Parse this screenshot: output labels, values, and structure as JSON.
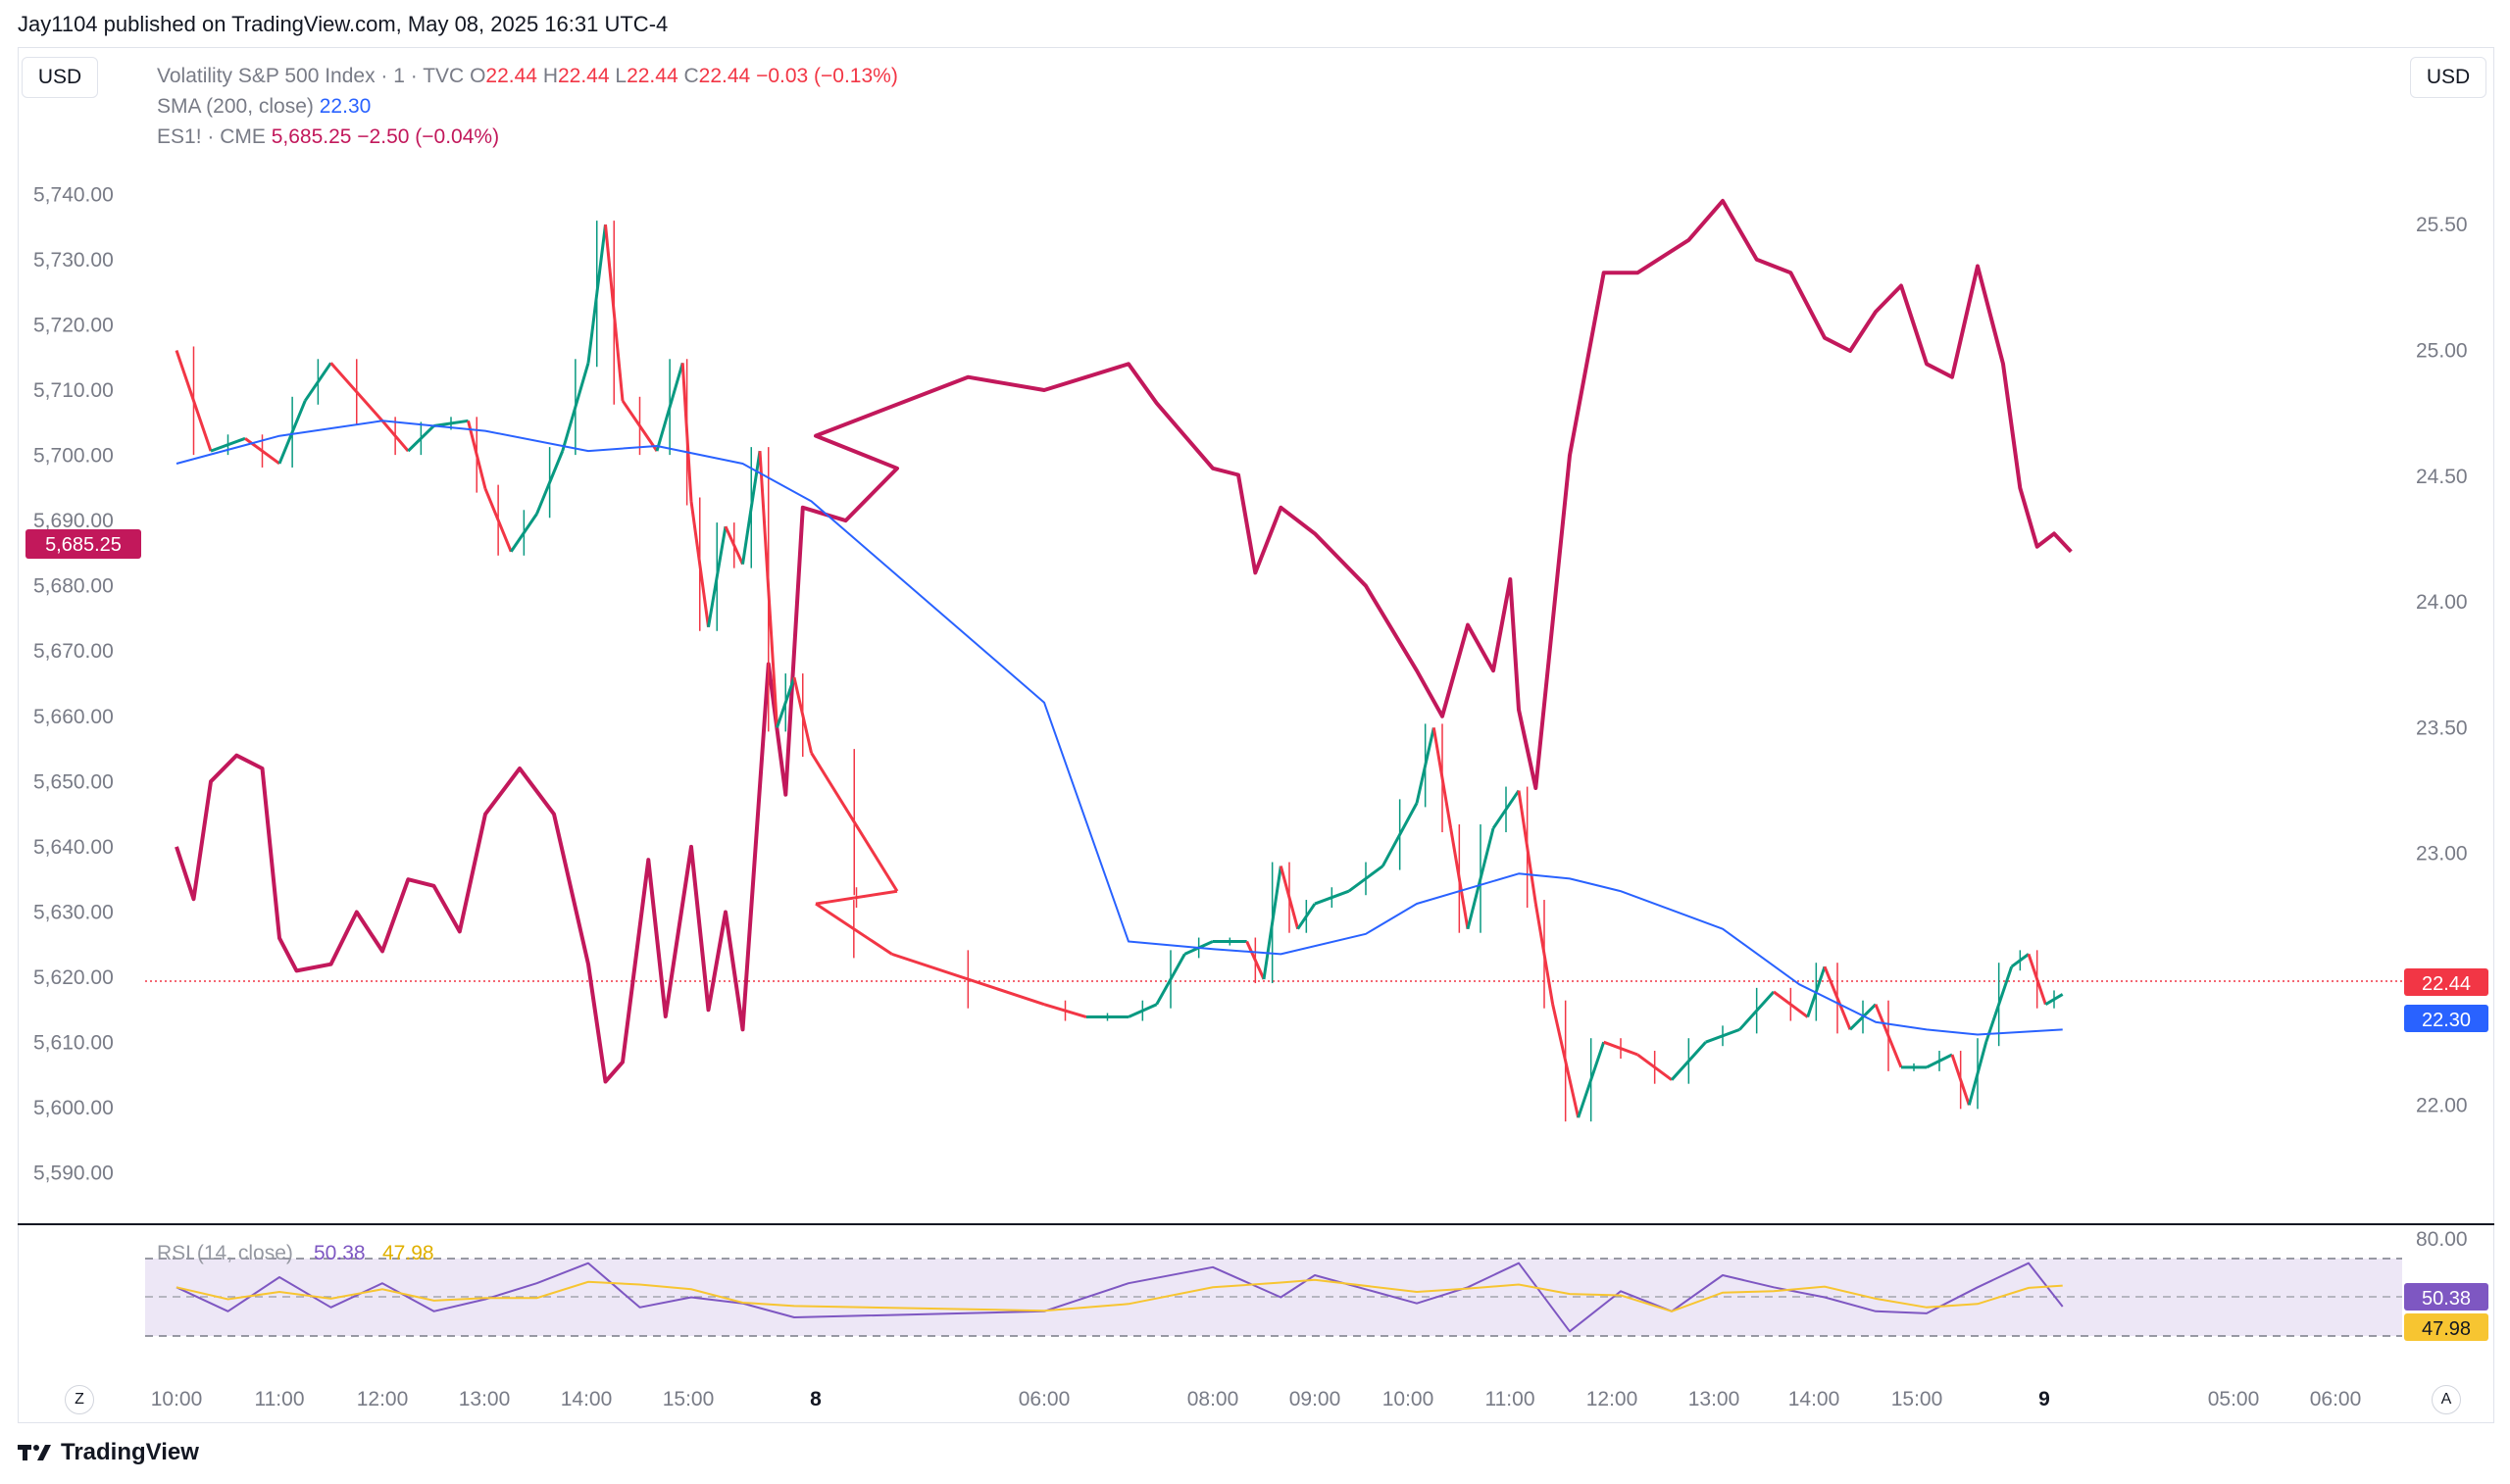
{
  "header": {
    "published": "Jay1104 published on TradingView.com, May 08, 2025 16:31 UTC-4"
  },
  "currency_left": "USD",
  "currency_right": "USD",
  "legend": {
    "vix_name": "Volatility S&P 500 Index · 1 · TVC",
    "o_label": "O",
    "o_value": "22.44",
    "h_label": "H",
    "h_value": "22.44",
    "l_label": "L",
    "l_value": "22.44",
    "c_label": "C",
    "c_value": "22.44",
    "change": "−0.03 (−0.13%)",
    "sma_label": "SMA (200, close)",
    "sma_value": "22.30",
    "es_label": "ES1! · CME",
    "es_value": "5,685.25",
    "es_change": "−2.50 (−0.04%)"
  },
  "colors": {
    "vix_up": "#089981",
    "vix_down": "#f23645",
    "sma": "#2962ff",
    "es": "#c2185b",
    "rsi": "#7e57c2",
    "rsi_ma": "#f7c531",
    "rsi_band": "#ede7f6"
  },
  "badges": {
    "es_last": "5,685.25",
    "vix_last": "22.44",
    "sma_last": "22.30",
    "rsi_value": "50.38",
    "rsi_ma_value": "47.98"
  },
  "rsi_legend": {
    "label": "RSI (14, close)",
    "value": "50.38",
    "ma": "47.98"
  },
  "corner": {
    "left": "Z",
    "right": "A"
  },
  "footer": {
    "brand": "TradingView"
  },
  "chart_data": {
    "type": "line",
    "title": "",
    "x": [
      "10:00",
      "11:00",
      "12:00",
      "13:00",
      "14:00",
      "15:00",
      "8",
      "06:00",
      "08:00",
      "09:00",
      "10:00",
      "11:00",
      "12:00",
      "13:00",
      "14:00",
      "15:00",
      "9",
      "05:00",
      "06:00"
    ],
    "left_axis": {
      "ylim": [
        5585,
        5745
      ],
      "ticks": [
        "5,740.00",
        "5,730.00",
        "5,720.00",
        "5,710.00",
        "5,700.00",
        "5,690.00",
        "5,680.00",
        "5,670.00",
        "5,660.00",
        "5,650.00",
        "5,640.00",
        "5,630.00",
        "5,620.00",
        "5,610.00",
        "5,600.00",
        "5,590.00"
      ]
    },
    "right_axis": {
      "ylim": [
        21.6,
        25.75
      ],
      "ticks": [
        "25.50",
        "25.00",
        "24.50",
        "24.00",
        "23.50",
        "23.00",
        "22.50",
        "22.00"
      ]
    },
    "rsi_axis": {
      "ylim": [
        25,
        85
      ],
      "ticks": [
        "80.00"
      ]
    },
    "series": [
      {
        "name": "ES1!",
        "axis": "left",
        "points": [
          [
            "10:00",
            5640
          ],
          [
            "10:10",
            5632
          ],
          [
            "10:20",
            5650
          ],
          [
            "10:35",
            5654
          ],
          [
            "10:50",
            5652
          ],
          [
            "11:00",
            5626
          ],
          [
            "11:10",
            5621
          ],
          [
            "11:30",
            5622
          ],
          [
            "11:45",
            5630
          ],
          [
            "12:00",
            5624
          ],
          [
            "12:15",
            5635
          ],
          [
            "12:30",
            5634
          ],
          [
            "12:45",
            5627
          ],
          [
            "13:00",
            5645
          ],
          [
            "13:20",
            5652
          ],
          [
            "13:40",
            5645
          ],
          [
            "14:00",
            5622
          ],
          [
            "14:10",
            5604
          ],
          [
            "14:20",
            5607
          ],
          [
            "14:35",
            5638
          ],
          [
            "14:45",
            5614
          ],
          [
            "15:00",
            5640
          ],
          [
            "15:10",
            5615
          ],
          [
            "15:20",
            5630
          ],
          [
            "15:30",
            5612
          ],
          [
            "15:45",
            5668
          ],
          [
            "15:55",
            5648
          ],
          [
            "16:05",
            5692
          ],
          [
            "16:30",
            5690
          ],
          [
            "17:00",
            5698
          ],
          [
            "05:00",
            5703
          ],
          [
            "05:40",
            5712
          ],
          [
            "06:00",
            5710
          ],
          [
            "06:30",
            5712
          ],
          [
            "07:00",
            5714
          ],
          [
            "07:20",
            5708
          ],
          [
            "07:40",
            5703
          ],
          [
            "08:00",
            5698
          ],
          [
            "08:15",
            5697
          ],
          [
            "08:25",
            5682
          ],
          [
            "08:40",
            5692
          ],
          [
            "09:00",
            5688
          ],
          [
            "09:30",
            5680
          ],
          [
            "10:00",
            5667
          ],
          [
            "10:15",
            5660
          ],
          [
            "10:30",
            5674
          ],
          [
            "10:45",
            5667
          ],
          [
            "10:55",
            5681
          ],
          [
            "11:00",
            5661
          ],
          [
            "11:10",
            5649
          ],
          [
            "11:30",
            5700
          ],
          [
            "11:50",
            5728
          ],
          [
            "12:10",
            5728
          ],
          [
            "12:40",
            5733
          ],
          [
            "13:00",
            5739
          ],
          [
            "13:20",
            5730
          ],
          [
            "13:40",
            5728
          ],
          [
            "14:00",
            5718
          ],
          [
            "14:15",
            5716
          ],
          [
            "14:30",
            5722
          ],
          [
            "14:45",
            5726
          ],
          [
            "15:00",
            5714
          ],
          [
            "15:15",
            5712
          ],
          [
            "15:30",
            5729
          ],
          [
            "15:45",
            5714
          ],
          [
            "15:55",
            5695
          ],
          [
            "16:05",
            5686
          ],
          [
            "16:15",
            5688
          ],
          [
            "16:25",
            5685.25
          ]
        ]
      },
      {
        "name": "VIX",
        "axis": "right",
        "points": [
          [
            "10:00",
            25.0
          ],
          [
            "10:20",
            24.6
          ],
          [
            "10:40",
            24.65
          ],
          [
            "11:00",
            24.55
          ],
          [
            "11:15",
            24.8
          ],
          [
            "11:30",
            24.95
          ],
          [
            "12:00",
            24.72
          ],
          [
            "12:15",
            24.6
          ],
          [
            "12:30",
            24.7
          ],
          [
            "12:50",
            24.72
          ],
          [
            "13:00",
            24.45
          ],
          [
            "13:15",
            24.2
          ],
          [
            "13:30",
            24.35
          ],
          [
            "13:45",
            24.6
          ],
          [
            "14:00",
            24.95
          ],
          [
            "14:10",
            25.5
          ],
          [
            "14:20",
            24.8
          ],
          [
            "14:40",
            24.6
          ],
          [
            "14:55",
            24.95
          ],
          [
            "15:00",
            24.4
          ],
          [
            "15:10",
            23.9
          ],
          [
            "15:20",
            24.3
          ],
          [
            "15:30",
            24.15
          ],
          [
            "15:40",
            24.6
          ],
          [
            "15:50",
            23.5
          ],
          [
            "16:00",
            23.7
          ],
          [
            "16:10",
            23.4
          ],
          [
            "17:00",
            22.85
          ],
          [
            "05:00",
            22.8
          ],
          [
            "05:20",
            22.6
          ],
          [
            "06:00",
            22.4
          ],
          [
            "06:30",
            22.35
          ],
          [
            "07:00",
            22.35
          ],
          [
            "07:20",
            22.4
          ],
          [
            "07:40",
            22.6
          ],
          [
            "08:00",
            22.65
          ],
          [
            "08:20",
            22.65
          ],
          [
            "08:30",
            22.5
          ],
          [
            "08:40",
            22.95
          ],
          [
            "08:50",
            22.7
          ],
          [
            "09:00",
            22.8
          ],
          [
            "09:20",
            22.85
          ],
          [
            "09:40",
            22.95
          ],
          [
            "10:00",
            23.2
          ],
          [
            "10:10",
            23.5
          ],
          [
            "10:20",
            23.1
          ],
          [
            "10:30",
            22.7
          ],
          [
            "10:45",
            23.1
          ],
          [
            "11:00",
            23.25
          ],
          [
            "11:10",
            22.8
          ],
          [
            "11:20",
            22.4
          ],
          [
            "11:35",
            21.95
          ],
          [
            "11:50",
            22.25
          ],
          [
            "12:10",
            22.2
          ],
          [
            "12:30",
            22.1
          ],
          [
            "12:50",
            22.25
          ],
          [
            "13:10",
            22.3
          ],
          [
            "13:30",
            22.45
          ],
          [
            "13:50",
            22.35
          ],
          [
            "14:00",
            22.55
          ],
          [
            "14:15",
            22.3
          ],
          [
            "14:30",
            22.4
          ],
          [
            "14:45",
            22.15
          ],
          [
            "15:00",
            22.15
          ],
          [
            "15:15",
            22.2
          ],
          [
            "15:25",
            22.0
          ],
          [
            "15:35",
            22.25
          ],
          [
            "15:50",
            22.55
          ],
          [
            "16:00",
            22.6
          ],
          [
            "16:10",
            22.4
          ],
          [
            "16:20",
            22.44
          ]
        ]
      },
      {
        "name": "SMA (200, close)",
        "axis": "right",
        "points": [
          [
            "10:00",
            24.55
          ],
          [
            "11:00",
            24.66
          ],
          [
            "12:00",
            24.72
          ],
          [
            "13:00",
            24.68
          ],
          [
            "14:00",
            24.6
          ],
          [
            "14:40",
            24.62
          ],
          [
            "15:30",
            24.55
          ],
          [
            "16:10",
            24.4
          ],
          [
            "06:00",
            23.6
          ],
          [
            "07:00",
            22.65
          ],
          [
            "08:00",
            22.62
          ],
          [
            "08:40",
            22.6
          ],
          [
            "09:30",
            22.68
          ],
          [
            "10:00",
            22.8
          ],
          [
            "11:00",
            22.92
          ],
          [
            "11:30",
            22.9
          ],
          [
            "12:00",
            22.85
          ],
          [
            "13:00",
            22.7
          ],
          [
            "13:45",
            22.48
          ],
          [
            "14:30",
            22.33
          ],
          [
            "15:00",
            22.3
          ],
          [
            "15:30",
            22.28
          ],
          [
            "16:20",
            22.3
          ]
        ]
      },
      {
        "name": "RSI (14, close)",
        "axis": "rsi",
        "points": [
          [
            "10:00",
            60
          ],
          [
            "10:30",
            48
          ],
          [
            "11:00",
            65
          ],
          [
            "11:30",
            50
          ],
          [
            "12:00",
            62
          ],
          [
            "12:30",
            48
          ],
          [
            "13:00",
            54
          ],
          [
            "13:30",
            62
          ],
          [
            "14:00",
            72
          ],
          [
            "14:30",
            50
          ],
          [
            "15:00",
            55
          ],
          [
            "15:30",
            52
          ],
          [
            "16:00",
            45
          ],
          [
            "06:00",
            48
          ],
          [
            "07:00",
            62
          ],
          [
            "08:00",
            70
          ],
          [
            "08:40",
            55
          ],
          [
            "09:00",
            66
          ],
          [
            "10:00",
            52
          ],
          [
            "10:30",
            60
          ],
          [
            "11:00",
            72
          ],
          [
            "11:30",
            38
          ],
          [
            "12:00",
            58
          ],
          [
            "12:30",
            48
          ],
          [
            "13:00",
            66
          ],
          [
            "13:30",
            60
          ],
          [
            "14:00",
            55
          ],
          [
            "14:30",
            48
          ],
          [
            "15:00",
            47
          ],
          [
            "15:30",
            60
          ],
          [
            "16:00",
            72
          ],
          [
            "16:20",
            50.38
          ]
        ]
      }
    ]
  }
}
